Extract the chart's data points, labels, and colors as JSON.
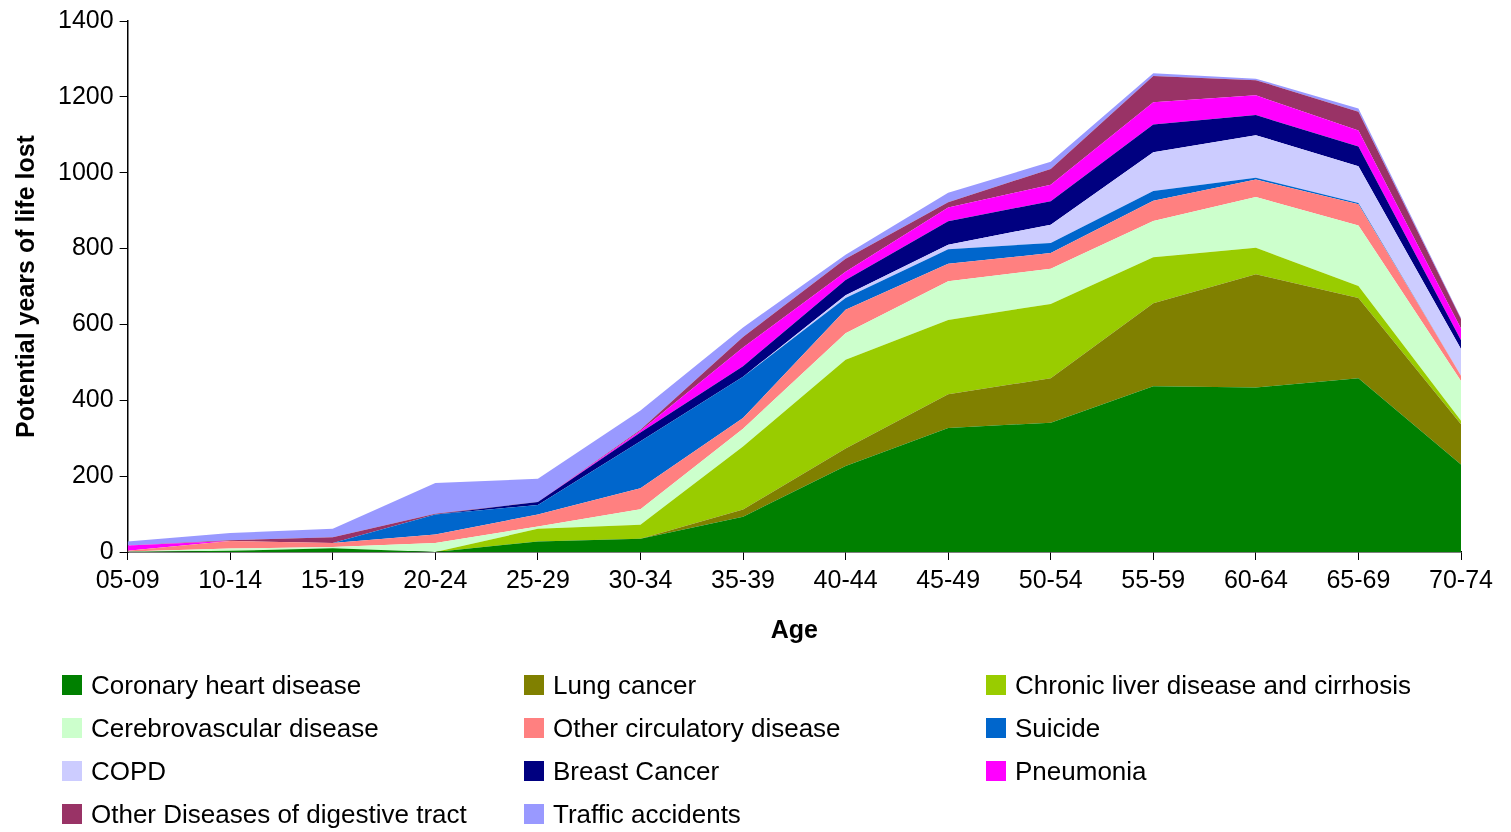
{
  "chart_data": {
    "type": "area",
    "stacked": true,
    "xlabel": "Age",
    "ylabel": "Potential years of life lost",
    "categories": [
      "05-09",
      "10-14",
      "15-19",
      "20-24",
      "25-29",
      "30-34",
      "35-39",
      "40-44",
      "45-49",
      "50-54",
      "55-59",
      "60-64",
      "65-69",
      "70-74"
    ],
    "ylim": [
      0,
      1400
    ],
    "yticks": [
      0,
      200,
      400,
      600,
      800,
      1000,
      1200,
      1400
    ],
    "grid": false,
    "legend": "bottom",
    "marker": "none",
    "series": [
      {
        "name": "Coronary heart disease",
        "color": "#008000",
        "values": [
          0,
          3,
          10,
          0,
          28,
          35,
          93,
          227,
          327,
          341,
          437,
          434,
          458,
          231
        ]
      },
      {
        "name": "Lung cancer",
        "color": "#808000",
        "values": [
          0,
          0,
          0,
          0,
          0,
          0,
          19,
          46,
          89,
          117,
          219,
          298,
          212,
          106
        ]
      },
      {
        "name": "Chronic liver disease and cirrhosis",
        "color": "#99cc00",
        "values": [
          0,
          0,
          0,
          0,
          33,
          37,
          166,
          234,
          196,
          196,
          121,
          70,
          31,
          9
        ]
      },
      {
        "name": "Cerebrovascular disease",
        "color": "#ccffcc",
        "values": [
          1,
          6,
          3,
          24,
          6,
          41,
          47,
          70,
          102,
          93,
          96,
          134,
          160,
          105
        ]
      },
      {
        "name": "Other circulatory disease",
        "color": "#ff8080",
        "values": [
          2,
          20,
          11,
          22,
          32,
          55,
          28,
          62,
          46,
          41,
          53,
          46,
          56,
          14
        ]
      },
      {
        "name": "Suicide",
        "color": "#0066cc",
        "values": [
          0,
          0,
          0,
          53,
          25,
          124,
          109,
          31,
          38,
          27,
          26,
          5,
          3,
          0
        ]
      },
      {
        "name": "COPD",
        "color": "#ccccff",
        "values": [
          0,
          0,
          0,
          0,
          0,
          0,
          0,
          7,
          12,
          48,
          102,
          112,
          97,
          70
        ]
      },
      {
        "name": "Breast Cancer",
        "color": "#000080",
        "values": [
          0,
          0,
          0,
          0,
          8,
          23,
          28,
          40,
          62,
          62,
          73,
          53,
          52,
          23
        ]
      },
      {
        "name": "Pneumonia",
        "color": "#ff00ff",
        "values": [
          14,
          0,
          0,
          0,
          0,
          5,
          49,
          22,
          36,
          43,
          59,
          52,
          42,
          31
        ]
      },
      {
        "name": "Other Diseases of digestive tract",
        "color": "#993366",
        "values": [
          0,
          2,
          15,
          2,
          0,
          2,
          28,
          34,
          14,
          42,
          69,
          40,
          50,
          25
        ]
      },
      {
        "name": "Traffic accidents",
        "color": "#9999ff",
        "values": [
          11,
          19,
          22,
          81,
          61,
          51,
          25,
          11,
          25,
          19,
          7,
          4,
          8,
          3
        ]
      }
    ]
  }
}
